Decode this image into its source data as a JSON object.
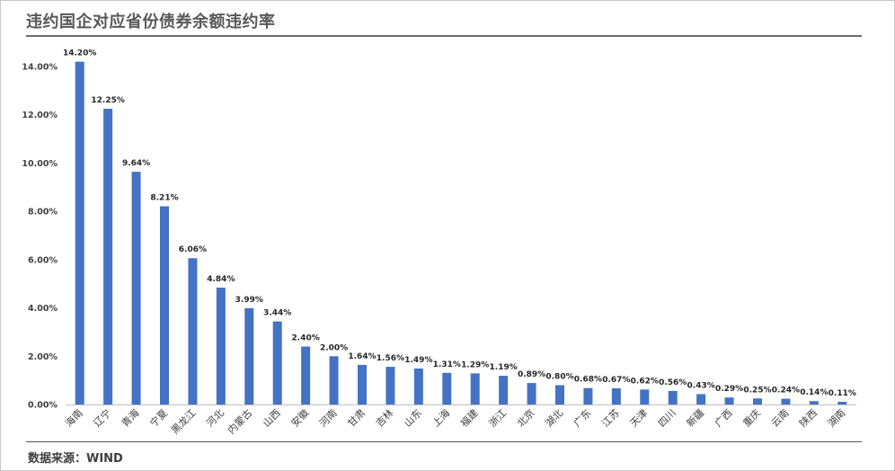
{
  "header": {
    "title": "违约国企对应省份债券余额违约率"
  },
  "footer": {
    "source": "数据来源：WIND"
  },
  "colors": {
    "bar": "#4472C4",
    "text": "#404040",
    "axis": "#bfbfbf"
  },
  "chart_data": {
    "type": "bar",
    "title": "违约国企对应省份债券余额违约率",
    "xlabel": "",
    "ylabel": "",
    "ylim": [
      0,
      14
    ],
    "y_ticks": [
      "0.00%",
      "2.00%",
      "4.00%",
      "6.00%",
      "8.00%",
      "10.00%",
      "12.00%",
      "14.00%"
    ],
    "y_tick_values": [
      0,
      2,
      4,
      6,
      8,
      10,
      12,
      14
    ],
    "grid": false,
    "legend": "none",
    "categories": [
      "海南",
      "辽宁",
      "青海",
      "宁夏",
      "黑龙江",
      "河北",
      "内蒙古",
      "山西",
      "安徽",
      "河南",
      "甘肃",
      "吉林",
      "山东",
      "上海",
      "福建",
      "浙江",
      "北京",
      "湖北",
      "广东",
      "江苏",
      "天津",
      "四川",
      "新疆",
      "广西",
      "重庆",
      "云南",
      "陕西",
      "湖南"
    ],
    "values": [
      14.2,
      12.25,
      9.64,
      8.21,
      6.06,
      4.84,
      3.99,
      3.44,
      2.4,
      2.0,
      1.64,
      1.56,
      1.49,
      1.31,
      1.29,
      1.19,
      0.89,
      0.8,
      0.68,
      0.67,
      0.62,
      0.56,
      0.43,
      0.29,
      0.25,
      0.24,
      0.14,
      0.11
    ],
    "labels": [
      "14.20%",
      "12.25%",
      "9.64%",
      "8.21%",
      "6.06%",
      "4.84%",
      "3.99%",
      "3.44%",
      "2.40%",
      "2.00%",
      "1.64%",
      "1.56%",
      "1.49%",
      "1.31%",
      "1.29%",
      "1.19%",
      "0.89%",
      "0.80%",
      "0.68%",
      "0.67%",
      "0.62%",
      "0.56%",
      "0.43%",
      "0.29%",
      "0.25%",
      "0.24%",
      "0.14%",
      "0.11%"
    ]
  }
}
